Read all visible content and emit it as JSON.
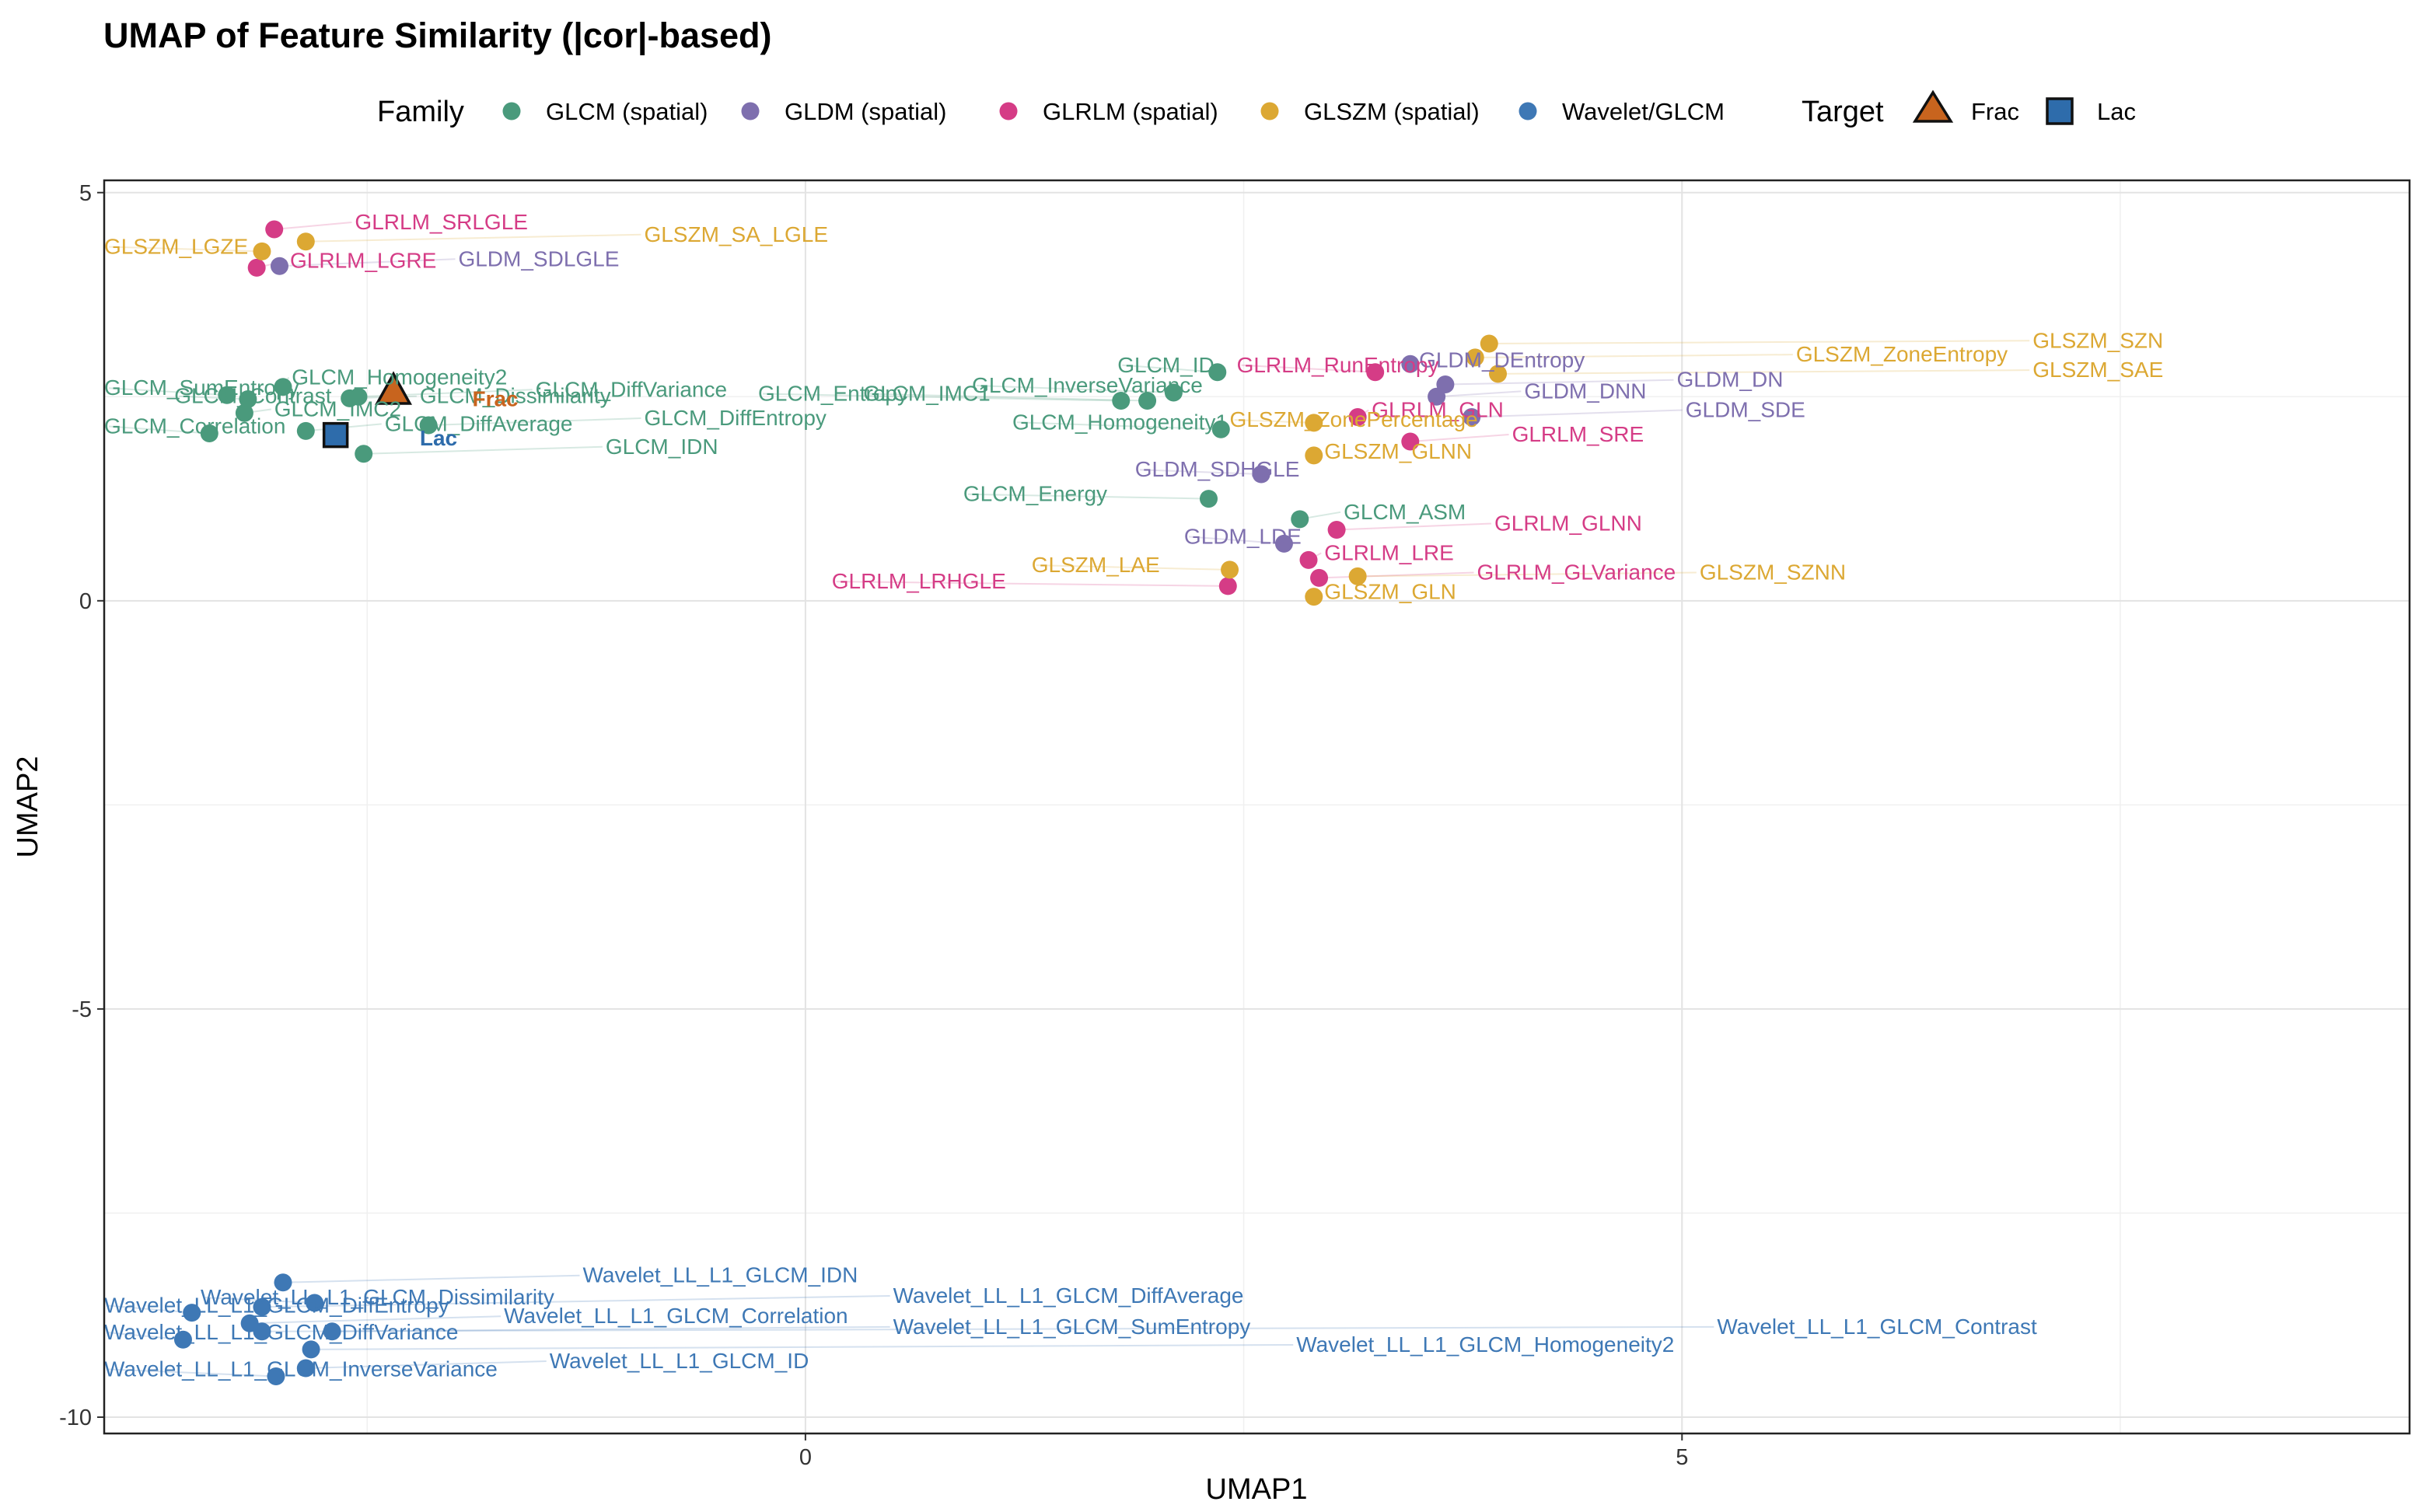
{
  "chart_data": {
    "type": "scatter",
    "title": "UMAP of Feature Similarity (|cor|-based)",
    "xlabel": "UMAP1",
    "ylabel": "UMAP2",
    "xlim": [
      -4.0,
      9.15
    ],
    "ylim": [
      -10.2,
      5.15
    ],
    "x_ticks": [
      0,
      5
    ],
    "y_ticks": [
      5,
      0,
      -5,
      -10
    ],
    "grid": true,
    "legend_position": "top",
    "legend": {
      "family_title": "Family",
      "target_title": "Target",
      "families": [
        {
          "key": "GLCM",
          "label": "GLCM (spatial)",
          "color": "#4a9a7c"
        },
        {
          "key": "GLDM",
          "label": "GLDM (spatial)",
          "color": "#7e6fae"
        },
        {
          "key": "GLRLM",
          "label": "GLRLM (spatial)",
          "color": "#d53c86"
        },
        {
          "key": "GLSZM",
          "label": "GLSZM (spatial)",
          "color": "#dca833"
        },
        {
          "key": "Wavelet",
          "label": "Wavelet/GLCM",
          "color": "#3e78b5"
        }
      ],
      "targets": [
        {
          "label": "Frac",
          "shape": "triangle",
          "color": "#c8641e"
        },
        {
          "label": "Lac",
          "shape": "square",
          "color": "#2e6cab"
        }
      ]
    },
    "series": [
      {
        "name": "GLCM (spatial)",
        "points": [
          {
            "label": "GLCM_SumEntropy",
            "x": -3.3,
            "y": 2.52,
            "lx": -4.0,
            "ly": 2.52
          },
          {
            "label": "GLCM_Contrast",
            "x": -3.18,
            "y": 2.47,
            "lx": -3.6,
            "ly": 2.42
          },
          {
            "label": "GLCM_Homogeneity2",
            "x": -2.98,
            "y": 2.62,
            "lx": -2.93,
            "ly": 2.65
          },
          {
            "label": "GLCM_DiffVariance",
            "x": -2.55,
            "y": 2.5,
            "lx": -1.54,
            "ly": 2.5
          },
          {
            "label": "GLCM_Dissimilarity",
            "x": -2.6,
            "y": 2.48,
            "lx": -2.2,
            "ly": 2.42
          },
          {
            "label": "GLCM_IMC2",
            "x": -3.2,
            "y": 2.3,
            "lx": -3.03,
            "ly": 2.26
          },
          {
            "label": "GLCM_DiffEntropy",
            "x": -2.15,
            "y": 2.15,
            "lx": -0.92,
            "ly": 2.15
          },
          {
            "label": "GLCM_Correlation",
            "x": -3.4,
            "y": 2.05,
            "lx": -4.0,
            "ly": 2.05
          },
          {
            "label": "GLCM_DiffAverage",
            "x": -2.85,
            "y": 2.08,
            "lx": -2.4,
            "ly": 2.08
          },
          {
            "label": "GLCM_IDN",
            "x": -2.52,
            "y": 1.8,
            "lx": -1.14,
            "ly": 1.8
          },
          {
            "label": "GLCM_Entropy",
            "x": 1.8,
            "y": 2.45,
            "lx": -0.27,
            "ly": 2.45
          },
          {
            "label": "GLCM_IMC1",
            "x": 1.95,
            "y": 2.45,
            "lx": 0.33,
            "ly": 2.45
          },
          {
            "label": "GLCM_InverseVariance",
            "x": 2.1,
            "y": 2.55,
            "lx": 0.95,
            "ly": 2.55
          },
          {
            "label": "GLCM_ID",
            "x": 2.35,
            "y": 2.8,
            "lx": 1.78,
            "ly": 2.8
          },
          {
            "label": "GLCM_Homogeneity1",
            "x": 2.37,
            "y": 2.1,
            "lx": 1.18,
            "ly": 2.1
          },
          {
            "label": "GLCM_Energy",
            "x": 2.3,
            "y": 1.25,
            "lx": 0.9,
            "ly": 1.22
          },
          {
            "label": "GLCM_ASM",
            "x": 2.82,
            "y": 1.0,
            "lx": 3.07,
            "ly": 1.0
          }
        ]
      },
      {
        "name": "GLDM (spatial)",
        "points": [
          {
            "label": "GLDM_SDLGLE",
            "x": -3.0,
            "y": 4.1,
            "lx": -1.98,
            "ly": 4.1
          },
          {
            "label": "GLDM_DEntropy",
            "x": 3.45,
            "y": 2.9,
            "lx": 3.5,
            "ly": 2.86
          },
          {
            "label": "GLDM_DN",
            "x": 3.65,
            "y": 2.65,
            "lx": 4.97,
            "ly": 2.62
          },
          {
            "label": "GLDM_DNN",
            "x": 3.6,
            "y": 2.5,
            "lx": 4.1,
            "ly": 2.48
          },
          {
            "label": "GLDM_SDE",
            "x": 3.8,
            "y": 2.25,
            "lx": 5.02,
            "ly": 2.25
          },
          {
            "label": "GLDM_SDHGLE",
            "x": 2.6,
            "y": 1.55,
            "lx": 1.88,
            "ly": 1.52
          },
          {
            "label": "GLDM_LDE",
            "x": 2.73,
            "y": 0.7,
            "lx": 2.16,
            "ly": 0.7
          }
        ]
      },
      {
        "name": "GLRLM (spatial)",
        "points": [
          {
            "label": "GLRLM_SRLGLE",
            "x": -3.03,
            "y": 4.55,
            "lx": -2.57,
            "ly": 4.55
          },
          {
            "label": "GLRLM_LGRE",
            "x": -3.13,
            "y": 4.08,
            "lx": -2.94,
            "ly": 4.08
          },
          {
            "label": "GLRLM_RunEntropy",
            "x": 3.25,
            "y": 2.8,
            "lx": 2.46,
            "ly": 2.8
          },
          {
            "label": "GLRLM_GLN",
            "x": 3.15,
            "y": 2.25,
            "lx": 3.23,
            "ly": 2.25
          },
          {
            "label": "GLRLM_SRE",
            "x": 3.45,
            "y": 1.95,
            "lx": 4.03,
            "ly": 1.95
          },
          {
            "label": "GLRLM_GLNN",
            "x": 3.03,
            "y": 0.87,
            "lx": 3.93,
            "ly": 0.86
          },
          {
            "label": "GLRLM_LRE",
            "x": 2.87,
            "y": 0.5,
            "lx": 2.96,
            "ly": 0.5
          },
          {
            "label": "GLRLM_GLVariance",
            "x": 2.93,
            "y": 0.28,
            "lx": 3.83,
            "ly": 0.26
          },
          {
            "label": "GLRLM_LRHGLE",
            "x": 2.41,
            "y": 0.18,
            "lx": 0.15,
            "ly": 0.15
          }
        ]
      },
      {
        "name": "GLSZM (spatial)",
        "points": [
          {
            "label": "GLSZM_SA_LGLE",
            "x": -2.85,
            "y": 4.4,
            "lx": -0.92,
            "ly": 4.4
          },
          {
            "label": "GLSZM_LGZE",
            "x": -3.1,
            "y": 4.28,
            "lx": -4.0,
            "ly": 4.25
          },
          {
            "label": "GLSZM_SZN",
            "x": 3.9,
            "y": 3.15,
            "lx": 7.0,
            "ly": 3.1
          },
          {
            "label": "GLSZM_ZoneEntropy",
            "x": 3.82,
            "y": 2.98,
            "lx": 5.65,
            "ly": 2.93
          },
          {
            "label": "GLSZM_SAE",
            "x": 3.95,
            "y": 2.78,
            "lx": 7.0,
            "ly": 2.74
          },
          {
            "label": "GLSZM_ZonePercentage",
            "x": 2.9,
            "y": 2.18,
            "lx": 2.42,
            "ly": 2.13
          },
          {
            "label": "GLSZM_GLNN",
            "x": 2.9,
            "y": 1.78,
            "lx": 2.96,
            "ly": 1.74
          },
          {
            "label": "GLSZM_LAE",
            "x": 2.42,
            "y": 0.38,
            "lx": 1.29,
            "ly": 0.35
          },
          {
            "label": "GLSZM_SZNN",
            "x": 3.15,
            "y": 0.3,
            "lx": 5.1,
            "ly": 0.26
          },
          {
            "label": "GLSZM_GLN",
            "x": 2.9,
            "y": 0.05,
            "lx": 2.96,
            "ly": 0.02
          }
        ]
      },
      {
        "name": "Wavelet/GLCM",
        "points": [
          {
            "label": "Wavelet_LL_L1_GLCM_IDN",
            "x": -2.98,
            "y": -8.35,
            "lx": -1.27,
            "ly": -8.35
          },
          {
            "label": "Wavelet_LL_L1_GLCM_Dissimilarity",
            "x": -2.8,
            "y": -8.6,
            "lx": -3.45,
            "ly": -8.62
          },
          {
            "label": "Wavelet_LL_L1_GLCM_DiffEntropy",
            "x": -3.5,
            "y": -8.72,
            "lx": -4.0,
            "ly": -8.72
          },
          {
            "label": "Wavelet_LL_L1_GLCM_DiffAverage",
            "x": -3.1,
            "y": -8.65,
            "lx": 0.5,
            "ly": -8.6
          },
          {
            "label": "Wavelet_LL_L1_GLCM_Correlation",
            "x": -3.17,
            "y": -8.85,
            "lx": -1.72,
            "ly": -8.85
          },
          {
            "label": "Wavelet_LL_L1_GLCM_SumEntropy",
            "x": -2.7,
            "y": -8.95,
            "lx": 0.5,
            "ly": -8.98
          },
          {
            "label": "Wavelet_LL_L1_GLCM_Contrast",
            "x": -3.1,
            "y": -8.95,
            "lx": 5.2,
            "ly": -8.98
          },
          {
            "label": "Wavelet_LL_L1_GLCM_DiffVariance",
            "x": -3.55,
            "y": -9.05,
            "lx": -4.0,
            "ly": -9.05
          },
          {
            "label": "Wavelet_LL_L1_GLCM_Homogeneity2",
            "x": -2.82,
            "y": -9.17,
            "lx": 2.8,
            "ly": -9.2
          },
          {
            "label": "Wavelet_LL_L1_GLCM_ID",
            "x": -2.85,
            "y": -9.4,
            "lx": -1.46,
            "ly": -9.4
          },
          {
            "label": "Wavelet_LL_L1_GLCM_InverseVariance",
            "x": -3.02,
            "y": -9.5,
            "lx": -4.0,
            "ly": -9.5
          }
        ]
      }
    ],
    "targets": [
      {
        "label": "Frac",
        "shape": "triangle",
        "x": -2.35,
        "y": 2.55,
        "lx": -1.9,
        "ly": 2.48
      },
      {
        "label": "Lac",
        "shape": "square",
        "x": -2.68,
        "y": 2.03,
        "lx": -2.2,
        "ly": 2.0
      }
    ]
  }
}
